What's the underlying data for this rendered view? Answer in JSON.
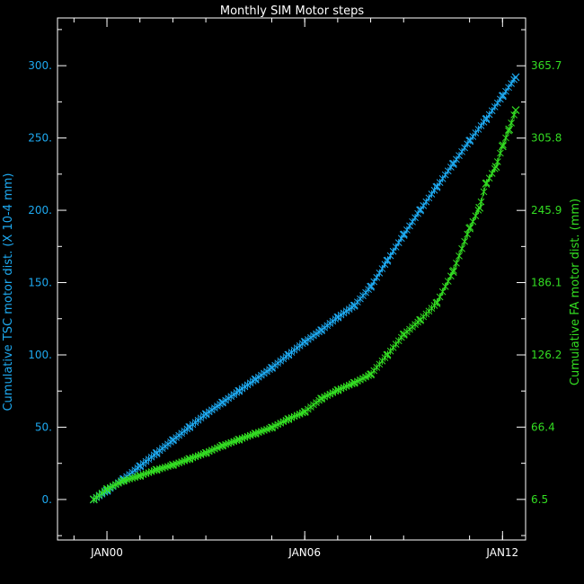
{
  "chart_data": {
    "type": "line",
    "title": "Monthly SIM Motor steps",
    "x_ticks": [
      {
        "label": "JAN00",
        "value": 2000.0
      },
      {
        "label": "JAN06",
        "value": 2006.0
      },
      {
        "label": "JAN12",
        "value": 2012.0
      }
    ],
    "xlim": [
      1998.5,
      2012.7
    ],
    "left_axis": {
      "label": "Cumulative TSC motor dist. (X 10-4 mm)",
      "ylim": [
        -28,
        333
      ],
      "ticks": [
        {
          "label": "0.",
          "value": 0
        },
        {
          "label": "50.",
          "value": 50
        },
        {
          "label": "100.",
          "value": 100
        },
        {
          "label": "150.",
          "value": 150
        },
        {
          "label": "200.",
          "value": 200
        },
        {
          "label": "250.",
          "value": 250
        },
        {
          "label": "300.",
          "value": 300
        }
      ]
    },
    "right_axis": {
      "label": "Cumulative FA motor dist. (mm)",
      "ylim": [
        -27.1,
        405.3
      ],
      "ticks": [
        {
          "label": "6.5",
          "value": 6.5
        },
        {
          "label": "66.4",
          "value": 66.4
        },
        {
          "label": "126.2",
          "value": 126.2
        },
        {
          "label": "186.1",
          "value": 186.1
        },
        {
          "label": "245.9",
          "value": 245.9
        },
        {
          "label": "305.8",
          "value": 305.8
        },
        {
          "label": "365.7",
          "value": 365.7
        }
      ]
    },
    "series": [
      {
        "axis": "left",
        "color": "#1ea9f0",
        "marker": "x",
        "x": [
          1999.6,
          2000.0,
          2000.5,
          2001.0,
          2001.5,
          2002.0,
          2002.5,
          2003.0,
          2003.5,
          2004.0,
          2004.5,
          2005.0,
          2005.5,
          2006.0,
          2006.5,
          2007.0,
          2007.5,
          2008.0,
          2008.5,
          2009.0,
          2009.5,
          2010.0,
          2010.5,
          2011.0,
          2011.5,
          2012.0,
          2012.4
        ],
        "y": [
          0,
          6,
          14,
          23,
          32,
          41,
          50,
          59,
          67,
          75,
          83,
          91,
          100,
          109,
          117,
          126,
          134,
          147,
          165,
          183,
          200,
          216,
          232,
          248,
          263,
          279,
          292
        ]
      },
      {
        "axis": "right",
        "color": "#33dd22",
        "marker": "x",
        "x": [
          1999.6,
          2000.0,
          2000.5,
          2001.0,
          2001.5,
          2002.0,
          2002.5,
          2003.0,
          2003.5,
          2004.0,
          2004.5,
          2005.0,
          2005.5,
          2006.0,
          2006.5,
          2007.0,
          2007.5,
          2008.0,
          2008.5,
          2009.0,
          2009.5,
          2010.0,
          2010.5,
          2011.0,
          2011.3,
          2011.5,
          2011.8,
          2012.0,
          2012.2,
          2012.4
        ],
        "y": [
          6.5,
          15,
          22,
          26,
          31,
          35,
          40,
          45,
          51,
          56,
          61,
          66,
          73,
          79,
          90,
          97,
          103,
          110,
          126,
          143,
          155,
          169,
          195,
          231,
          248,
          268,
          282,
          299,
          313,
          329
        ]
      }
    ]
  }
}
